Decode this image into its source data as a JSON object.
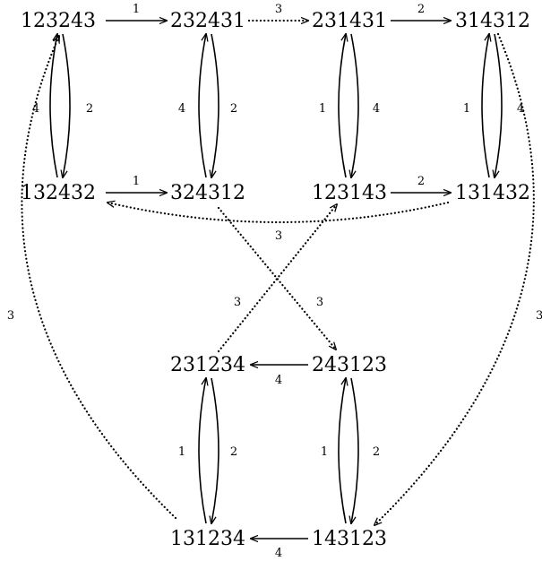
{
  "nodes": {
    "n123243": "123243",
    "n232431": "232431",
    "n231431": "231431",
    "n314312": "314312",
    "n132432": "132432",
    "n324312": "324312",
    "n123143": "123143",
    "n131432": "131432",
    "n231234": "231234",
    "n243123": "243123",
    "n131234": "131234",
    "n143123": "143123"
  },
  "edges": {
    "e1": "1",
    "e2": "3",
    "e3": "2",
    "e4": "4",
    "e5": "2",
    "e6": "4",
    "e7": "2",
    "e8": "1",
    "e9": "4",
    "e10": "1",
    "e11": "4",
    "e12": "1",
    "e13": "2",
    "e14": "3",
    "e15": "3",
    "e16": "3",
    "e17": "3",
    "e18": "3",
    "e19": "4",
    "e20": "1",
    "e21": "2",
    "e22": "1",
    "e23": "2",
    "e24": "4"
  }
}
